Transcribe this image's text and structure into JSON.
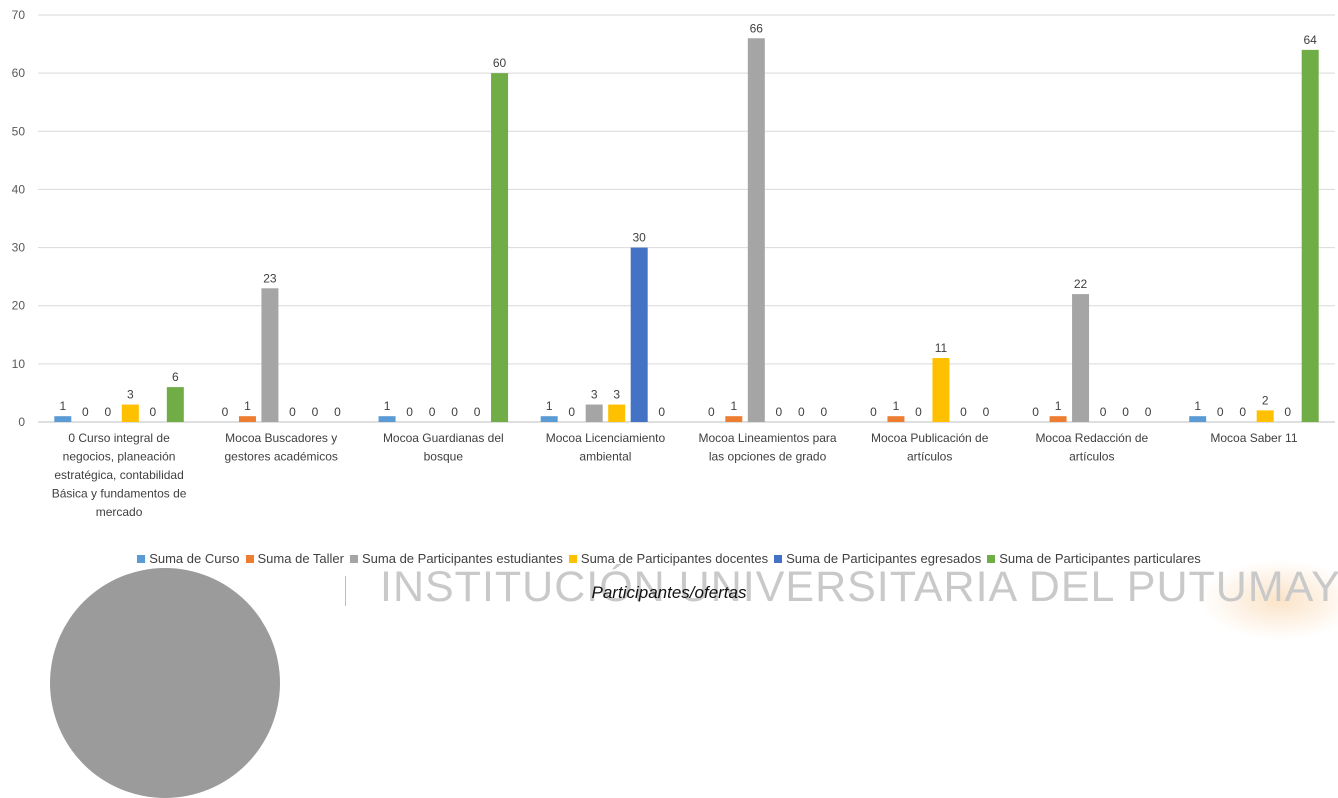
{
  "chart_data": {
    "type": "bar",
    "title": "",
    "xlabel": "Participantes/ofertas",
    "ylabel": "",
    "ylim": [
      0,
      70
    ],
    "yticks": [
      0,
      10,
      20,
      30,
      40,
      50,
      60,
      70
    ],
    "grid": true,
    "legend_position": "bottom",
    "categories": [
      "0 Curso integral de negocios, planeación estratégica, contabilidad Básica y fundamentos de mercado",
      "Mocoa Buscadores y gestores académicos",
      "Mocoa Guardianas del bosque",
      "Mocoa Licenciamiento ambiental",
      "Mocoa Lineamientos para las opciones de grado",
      "Mocoa Publicación de artículos",
      "Mocoa Redacción de artículos",
      "Mocoa Saber 11"
    ],
    "category_lines": [
      [
        "0 Curso integral de",
        "negocios, planeación",
        "estratégica, contabilidad",
        "Básica y fundamentos de",
        "mercado"
      ],
      [
        "Mocoa Buscadores y",
        "gestores académicos"
      ],
      [
        "Mocoa Guardianas del",
        "bosque"
      ],
      [
        "Mocoa Licenciamiento",
        "ambiental"
      ],
      [
        "Mocoa Lineamientos para",
        "las opciones de grado"
      ],
      [
        "Mocoa Publicación de",
        "artículos"
      ],
      [
        "Mocoa Redacción de",
        "artículos"
      ],
      [
        "Mocoa Saber 11"
      ]
    ],
    "series": [
      {
        "name": "Suma de Curso",
        "color": "#5B9BD5",
        "values": [
          1,
          0,
          1,
          1,
          0,
          0,
          0,
          1
        ]
      },
      {
        "name": "Suma de Taller",
        "color": "#ED7D31",
        "values": [
          0,
          1,
          0,
          0,
          1,
          1,
          1,
          0
        ]
      },
      {
        "name": "Suma de Participantes estudiantes",
        "color": "#A5A5A5",
        "values": [
          0,
          23,
          0,
          3,
          66,
          0,
          22,
          0
        ]
      },
      {
        "name": "Suma de Participantes docentes",
        "color": "#FFC000",
        "values": [
          3,
          0,
          0,
          3,
          0,
          11,
          0,
          2
        ]
      },
      {
        "name": "Suma de Participantes egresados",
        "color": "#4472C4",
        "values": [
          0,
          0,
          0,
          30,
          0,
          0,
          0,
          0
        ]
      },
      {
        "name": "Suma de Participantes particulares",
        "color": "#70AD47",
        "values": [
          6,
          0,
          60,
          0,
          0,
          0,
          0,
          64
        ]
      }
    ]
  },
  "watermark": {
    "text": "INSTITUCIÓN UNIVERSITARIA DEL PUTUMAYO"
  }
}
